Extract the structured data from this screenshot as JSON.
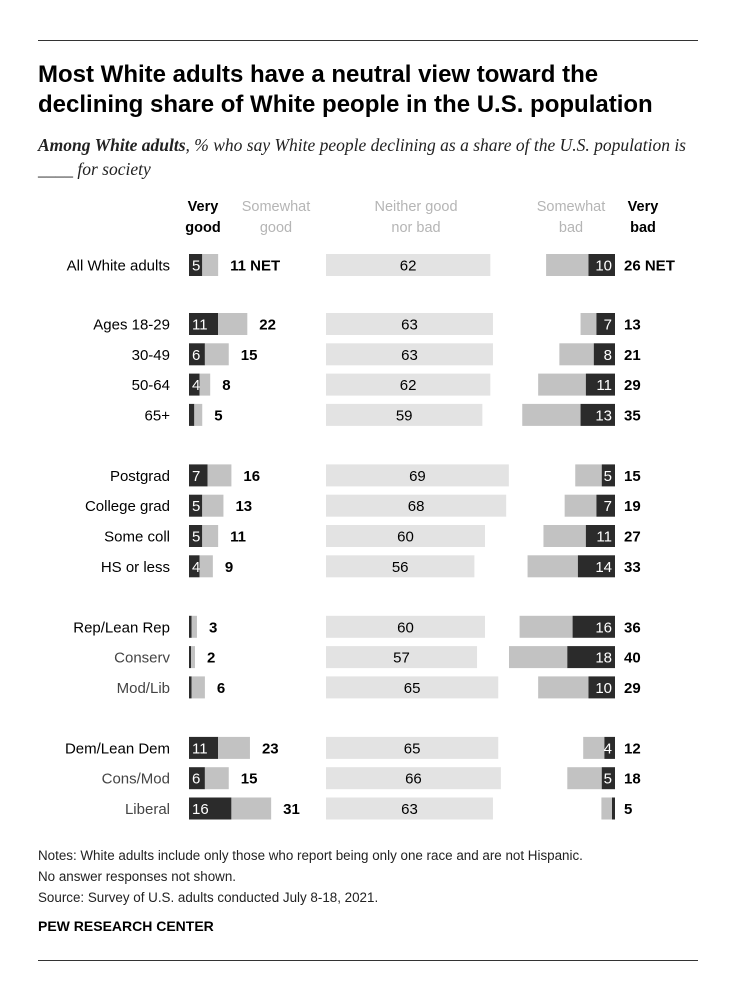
{
  "title": "Most White adults have a neutral view toward the declining share of White people in the U.S. population",
  "subtitle_bold": "Among White adults",
  "subtitle_rest": ", % who say White people declining as a share of the U.S. population is ____ for society",
  "notes": {
    "line1": "Notes: White adults include only those who report being only one race and are not Hispanic.",
    "line2": "No answer responses not shown.",
    "source": "Source: Survey of U.S. adults conducted July 8-18, 2021."
  },
  "brand": "PEW RESEARCH CENTER",
  "colors": {
    "very": "#2b2b2b",
    "somewhat": "#c2c2c2",
    "neither": "#e3e3e3",
    "header_light": "#b5b5b5"
  },
  "chart_data": {
    "type": "bar",
    "stacked": "diverging",
    "headers": {
      "very_good": [
        "Very",
        "good"
      ],
      "somewhat_good": [
        "Somewhat",
        "good"
      ],
      "neither": [
        "Neither good",
        "nor bad"
      ],
      "somewhat_bad": [
        "Somewhat",
        "bad"
      ],
      "very_bad": [
        "Very",
        "bad"
      ]
    },
    "categories": [
      "All White adults",
      "Ages 18-29",
      "30-49",
      "50-64",
      "65+",
      "Postgrad",
      "College grad",
      "Some coll",
      "HS or less",
      "Rep/Lean Rep",
      "Conserv",
      "Mod/Lib",
      "Dem/Lean Dem",
      "Cons/Mod",
      "Liberal"
    ],
    "groups": [
      [
        0
      ],
      [
        1,
        2,
        3,
        4
      ],
      [
        5,
        6,
        7,
        8
      ],
      [
        9,
        10,
        11
      ],
      [
        12,
        13,
        14
      ]
    ],
    "subgroup_rows": [
      10,
      11,
      13,
      14
    ],
    "series": [
      {
        "name": "Very good",
        "values": [
          5,
          11,
          6,
          4,
          2,
          7,
          5,
          5,
          4,
          1,
          0.5,
          1,
          11,
          6,
          16
        ],
        "labels": [
          "5",
          "11",
          "6",
          "4",
          "",
          "7",
          "5",
          "5",
          "4",
          "",
          "",
          "",
          "11",
          "6",
          "16"
        ]
      },
      {
        "name": "Somewhat good",
        "values": [
          6,
          11,
          9,
          4,
          3,
          9,
          8,
          6,
          5,
          2,
          1.5,
          5,
          12,
          9,
          15
        ]
      },
      {
        "name": "Good NET",
        "values": [
          11,
          22,
          15,
          8,
          5,
          16,
          13,
          11,
          9,
          3,
          2,
          6,
          23,
          15,
          31
        ],
        "labels": [
          "11 NET",
          "22",
          "15",
          "8",
          "5",
          "16",
          "13",
          "11",
          "9",
          "3",
          "2",
          "6",
          "23",
          "15",
          "31"
        ]
      },
      {
        "name": "Neither good nor bad",
        "values": [
          62,
          63,
          63,
          62,
          59,
          69,
          68,
          60,
          56,
          60,
          57,
          65,
          65,
          66,
          63
        ],
        "labels": [
          "62",
          "63",
          "63",
          "62",
          "59",
          "69",
          "68",
          "60",
          "56",
          "60",
          "57",
          "65",
          "65",
          "66",
          "63"
        ]
      },
      {
        "name": "Somewhat bad",
        "values": [
          16,
          6,
          13,
          18,
          22,
          10,
          12,
          16,
          19,
          20,
          22,
          19,
          8,
          13,
          4
        ]
      },
      {
        "name": "Very bad",
        "values": [
          10,
          7,
          8,
          11,
          13,
          5,
          7,
          11,
          14,
          16,
          18,
          10,
          4,
          5,
          1
        ],
        "labels": [
          "10",
          "7",
          "8",
          "11",
          "13",
          "5",
          "7",
          "11",
          "14",
          "16",
          "18",
          "10",
          "4",
          "5",
          ""
        ]
      },
      {
        "name": "Bad NET",
        "values": [
          26,
          13,
          21,
          29,
          35,
          15,
          19,
          27,
          33,
          36,
          40,
          29,
          12,
          18,
          5
        ],
        "labels": [
          "26 NET",
          "13",
          "21",
          "29",
          "35",
          "15",
          "19",
          "27",
          "33",
          "36",
          "40",
          "29",
          "12",
          "18",
          "5"
        ]
      }
    ]
  }
}
